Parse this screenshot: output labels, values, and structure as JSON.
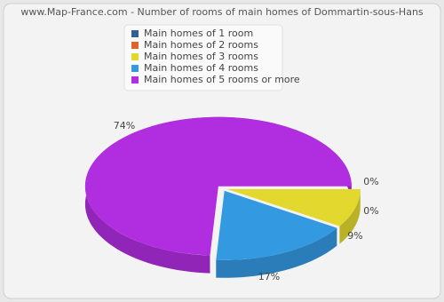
{
  "chart_data": {
    "type": "pie",
    "title": "www.Map-France.com - Number of rooms of main homes of Dommartin-sous-Hans",
    "categories": [
      "Main homes of 1 room",
      "Main homes of 2 rooms",
      "Main homes of 3 rooms",
      "Main homes of 4 rooms",
      "Main homes of 5 rooms or more"
    ],
    "values": [
      0,
      0,
      9,
      17,
      74
    ],
    "value_labels": [
      "0%",
      "0%",
      "9%",
      "17%",
      "74%"
    ],
    "colors": [
      "#345f8e",
      "#e0622a",
      "#e2d82e",
      "#3399e0",
      "#b02de0"
    ]
  }
}
